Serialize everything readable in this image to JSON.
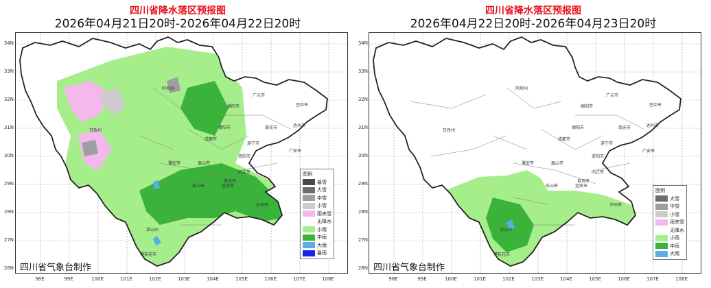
{
  "left_panel": {
    "title": "四川省降水落区预报图",
    "date_range": "2026年04月21日20时-2026年04月22日20时",
    "maker": "四川省气象台制作",
    "legend_title": "图例",
    "legend": [
      {
        "label": "暴雪",
        "color": "#4a4a4a"
      },
      {
        "label": "大雪",
        "color": "#6e6e6e"
      },
      {
        "label": "中雪",
        "color": "#9e9e9e"
      },
      {
        "label": "小雪",
        "color": "#cccccc"
      },
      {
        "label": "雨夹雪",
        "color": "#f4b8ec"
      },
      {
        "label": "无降水",
        "color": "#ffffff"
      },
      {
        "label": "小雨",
        "color": "#a6ee8c"
      },
      {
        "label": "中雨",
        "color": "#3bb33b"
      },
      {
        "label": "大雨",
        "color": "#5aaee6"
      },
      {
        "label": "暴雨",
        "color": "#1b22e6"
      }
    ]
  },
  "right_panel": {
    "title": "四川省降水落区预报图",
    "date_range": "2026年04月22日20时-2026年04月23日20时",
    "maker": "四川省气象台制作",
    "legend_title": "图例",
    "legend": [
      {
        "label": "大雪",
        "color": "#6e6e6e"
      },
      {
        "label": "中雪",
        "color": "#9e9e9e"
      },
      {
        "label": "小雪",
        "color": "#cccccc"
      },
      {
        "label": "雨夹雪",
        "color": "#f4b8ec"
      },
      {
        "label": "无降水",
        "color": "#ffffff"
      },
      {
        "label": "小雨",
        "color": "#a6ee8c"
      },
      {
        "label": "中雨",
        "color": "#3bb33b"
      },
      {
        "label": "大雨",
        "color": "#5aaee6"
      }
    ]
  },
  "lat_labels": [
    "34N",
    "33N",
    "32N",
    "31N",
    "30N",
    "29N",
    "28N",
    "27N",
    "26N"
  ],
  "lon_labels": [
    "98E",
    "99E",
    "100E",
    "101E",
    "102E",
    "103E",
    "104E",
    "105E",
    "106E",
    "107E",
    "108E"
  ],
  "cities": [
    "阿坝州",
    "绵阳市",
    "广元市",
    "巴中市",
    "德阳市",
    "南充市",
    "达州市",
    "甘孜州",
    "成都市",
    "遂宁市",
    "广安市",
    "雅安市",
    "眉山市",
    "资阳市",
    "乐山市",
    "内江市",
    "自贡市",
    "宜宾市",
    "泸州市",
    "凉山州",
    "攀枝花市"
  ]
}
